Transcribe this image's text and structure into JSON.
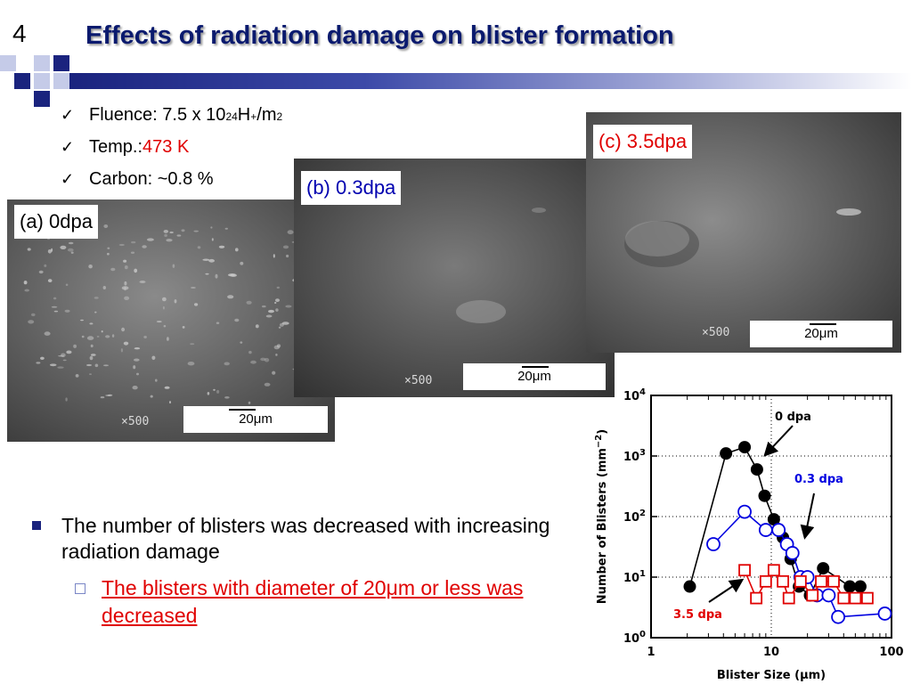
{
  "slide_number": "4",
  "title": "Effects of radiation damage on blister formation",
  "conditions": {
    "fluence_label": "Fluence: 7.5 x 10",
    "fluence_exp": "24",
    "fluence_unit_a": " H",
    "fluence_unit_sup": "+",
    "fluence_unit_b": "/m",
    "fluence_unit_exp": "2",
    "temp_label": "Temp.: ",
    "temp_value": "473 K",
    "carbon_label": "Carbon: ~0.8 %"
  },
  "images": [
    {
      "label": "(a) 0dpa",
      "scale": "20μm",
      "mag": "×500"
    },
    {
      "label": "(b) 0.3dpa",
      "scale": "20μm",
      "mag": "×500"
    },
    {
      "label": "(c) 3.5dpa",
      "scale": "20μm",
      "mag": "×500"
    }
  ],
  "bullets": {
    "main": "The number of blisters was decreased with increasing radiation damage",
    "sub": "The blisters with diameter of  20μm or less was decreased"
  },
  "colors": {
    "title": "#0a1a6e",
    "accent": "#1a237e",
    "red": "#e00000",
    "blue": "#0000e0"
  },
  "chart_data": {
    "type": "scatter",
    "xlabel": "Blister Size (μm)",
    "ylabel_main": "Number of Blisters (mm",
    "ylabel_sup": "−2",
    "ylabel_end": ")",
    "x_scale": "log",
    "y_scale": "log",
    "xlim": [
      1,
      100
    ],
    "ylim": [
      1,
      10000
    ],
    "x_ticks": [
      {
        "v": 1,
        "label": "1"
      },
      {
        "v": 10,
        "label": "10"
      },
      {
        "v": 100,
        "label": "100"
      }
    ],
    "y_ticks": [
      {
        "v": 1,
        "base": "10",
        "exp": "0"
      },
      {
        "v": 10,
        "base": "10",
        "exp": "1"
      },
      {
        "v": 100,
        "base": "10",
        "exp": "2"
      },
      {
        "v": 1000,
        "base": "10",
        "exp": "3"
      },
      {
        "v": 10000,
        "base": "10",
        "exp": "4"
      }
    ],
    "grid": "dotted",
    "series": [
      {
        "name": "0 dpa",
        "color": "#000000",
        "marker": "filled-circle",
        "x": [
          2.1,
          4.2,
          6.0,
          7.6,
          8.8,
          10.5,
          12.5,
          14.5,
          17.0,
          21.0,
          27.0,
          45.0,
          55.0
        ],
        "y": [
          7,
          1100,
          1400,
          600,
          220,
          90,
          45,
          20,
          7,
          5,
          14,
          7,
          7
        ]
      },
      {
        "name": "0.3 dpa",
        "color": "#0000e0",
        "marker": "open-circle",
        "x": [
          3.3,
          6.0,
          9.0,
          11.5,
          13.5,
          15.0,
          17.5,
          20.0,
          24.0,
          30.0,
          36.0,
          88.0
        ],
        "y": [
          35,
          120,
          60,
          60,
          35,
          25,
          10,
          10,
          5,
          5,
          2.2,
          2.5
        ]
      },
      {
        "name": "3.5 dpa",
        "color": "#e00000",
        "marker": "open-square",
        "x": [
          6.0,
          7.5,
          9.0,
          10.5,
          12.5,
          14.0,
          17.5,
          22.0,
          26.0,
          33.0,
          40.0,
          50.0,
          63.0
        ],
        "y": [
          13,
          4.5,
          8.5,
          13,
          8.5,
          4.5,
          8.5,
          5,
          8.5,
          8.5,
          4.5,
          4.5,
          4.5
        ]
      }
    ],
    "annotations": [
      {
        "text": "0 dpa",
        "color": "#000000"
      },
      {
        "text": "0.3 dpa",
        "color": "#0000e0"
      },
      {
        "text": "3.5 dpa",
        "color": "#e00000"
      }
    ]
  }
}
